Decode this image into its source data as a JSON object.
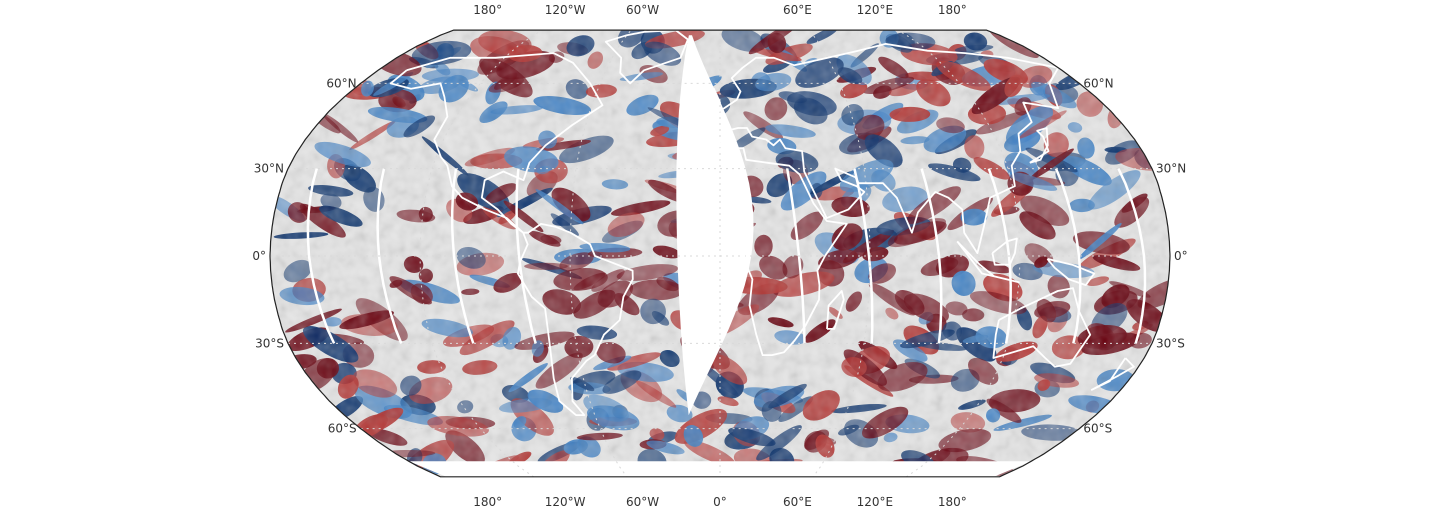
{
  "map": {
    "projection": "robinson",
    "colormap": "diverging-red-blue",
    "colors": {
      "positive_strong": "#67000d",
      "positive_mid": "#b2312f",
      "neutral": "#e6e6e6",
      "negative_mid": "#3d7fc4",
      "negative_strong": "#08306b",
      "coastline": "#ffffff",
      "missing_data": "#ffffff",
      "graticule": "#d9d9d9"
    },
    "grid": true,
    "top_lon_labels": [
      {
        "lon": -180,
        "text": "180°"
      },
      {
        "lon": -120,
        "text": "120°W"
      },
      {
        "lon": -60,
        "text": "60°W"
      },
      {
        "lon": 60,
        "text": "60°E"
      },
      {
        "lon": 120,
        "text": "120°E"
      },
      {
        "lon": 180,
        "text": "180°"
      }
    ],
    "bottom_lon_labels": [
      {
        "lon": -180,
        "text": "180°"
      },
      {
        "lon": -120,
        "text": "120°W"
      },
      {
        "lon": -60,
        "text": "60°W"
      },
      {
        "lon": 0,
        "text": "0°"
      },
      {
        "lon": 60,
        "text": "60°E"
      },
      {
        "lon": 120,
        "text": "120°E"
      },
      {
        "lon": 180,
        "text": "180°"
      }
    ],
    "lat_labels_left": [
      {
        "lat": 60,
        "text": "60°N"
      },
      {
        "lat": 30,
        "text": "30°N"
      },
      {
        "lat": 0,
        "text": "0°"
      },
      {
        "lat": -30,
        "text": "30°S"
      },
      {
        "lat": -60,
        "text": "60°S"
      }
    ],
    "lat_labels_right": [
      {
        "lat": 60,
        "text": "60°N"
      },
      {
        "lat": 30,
        "text": "30°N"
      },
      {
        "lat": 0,
        "text": "0°"
      },
      {
        "lat": -30,
        "text": "30°S"
      },
      {
        "lat": -60,
        "text": "60°S"
      }
    ]
  }
}
